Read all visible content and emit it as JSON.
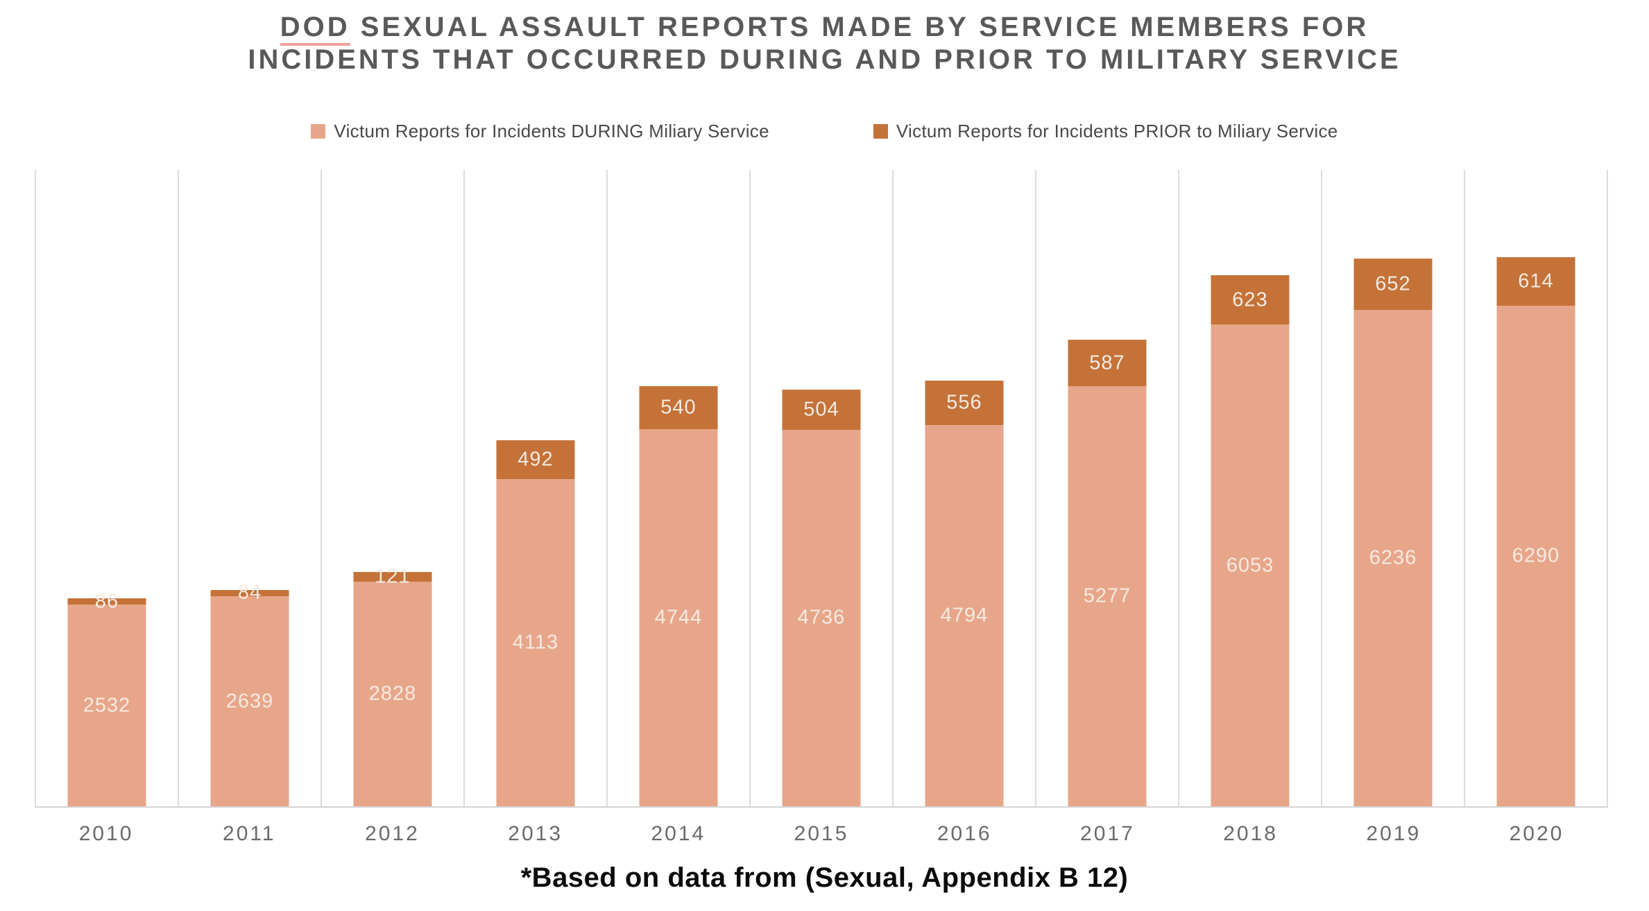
{
  "title": {
    "dod": "DOD",
    "line1_rest": " SEXUAL ASSAULT REPORTS MADE BY SERVICE MEMBERS FOR",
    "line2": "INCIDENTS THAT OCCURRED DURING AND PRIOR TO MILITARY SERVICE"
  },
  "legend": [
    {
      "label": "Victum Reports for Incidents DURING Miliary Service",
      "color": "#e6a habitually-unused",
      "swatch_color": "#e7a68a"
    },
    {
      "label": "Victum Reports for Incidents PRIOR to Miliary Service",
      "swatch_color": "#c57232"
    }
  ],
  "footnote": "*Based on data from (Sexual, Appendix B 12)",
  "colors": {
    "during_bar": "#e7a68a",
    "prior_bar": "#c57238",
    "value_label": "#f4eae1",
    "gridline": "#dcdcdc",
    "title_text": "#595959",
    "axis_label_text": "#6a6a6a",
    "dod_underline": "#f0a29b"
  },
  "chart_data": {
    "type": "bar",
    "stacked": true,
    "title": "DOD SEXUAL ASSAULT REPORTS MADE BY SERVICE MEMBERS FOR INCIDENTS THAT OCCURRED DURING AND PRIOR TO MILITARY SERVICE",
    "categories": [
      "2010",
      "2011",
      "2012",
      "2013",
      "2014",
      "2015",
      "2016",
      "2017",
      "2018",
      "2019",
      "2020"
    ],
    "series": [
      {
        "name": "Victum Reports for Incidents DURING Miliary Service",
        "color": "#e7a68a",
        "values": [
          2532,
          2639,
          2828,
          4113,
          4744,
          4736,
          4794,
          5277,
          6053,
          6236,
          6290
        ]
      },
      {
        "name": "Victum Reports for Incidents PRIOR to Miliary Service",
        "color": "#c57238",
        "values": [
          86,
          84,
          121,
          492,
          540,
          504,
          556,
          587,
          623,
          652,
          614
        ]
      }
    ],
    "totals": [
      2618,
      2723,
      2949,
      4605,
      5284,
      5240,
      5350,
      5864,
      6676,
      6888,
      6904
    ],
    "xlabel": "",
    "ylabel": "",
    "ylim": [
      0,
      8000
    ],
    "grid": "vertical",
    "legend_position": "top",
    "data_labels": "inside-center",
    "footnote": "*Based on data from (Sexual, Appendix B 12)"
  }
}
